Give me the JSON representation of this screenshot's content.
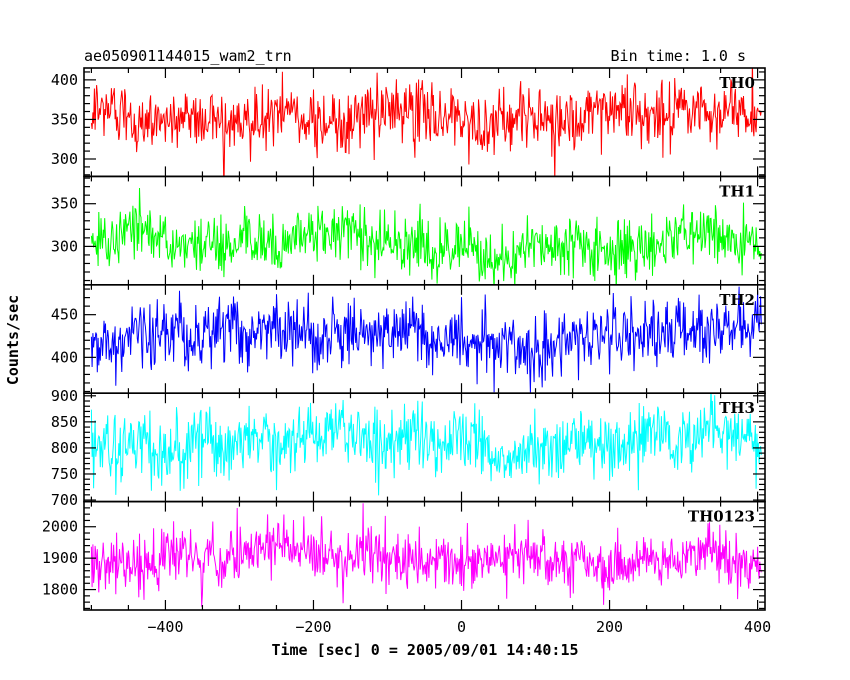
{
  "chart_data": {
    "type": "line",
    "title": "ae050901144015_wam2_trn",
    "bin_time_label": "Bin time: 1.0 s",
    "xlabel": "Time [sec] 0 = 2005/09/01 14:40:15",
    "ylabel": "Counts/sec",
    "xlim": [
      -510,
      410
    ],
    "data_x_range": [
      -500,
      405
    ],
    "bin_seconds": 1.0,
    "x_ticks": [
      -400,
      -200,
      0,
      200,
      400
    ],
    "x_tick_labels": [
      "−400",
      "−200",
      "0",
      "200",
      "400"
    ],
    "grid": false,
    "series": [
      {
        "name": "TH0",
        "color": "#ff0000",
        "mean": 355,
        "noise_sd": 20,
        "ylim": [
          278,
          415
        ],
        "yticks": [
          300,
          350,
          400
        ],
        "ytick_labels": [
          "300",
          "350",
          "400"
        ]
      },
      {
        "name": "TH1",
        "color": "#00ff00",
        "mean": 312,
        "noise_sd": 17,
        "ylim": [
          255,
          382
        ],
        "yticks": [
          300,
          350
        ],
        "ytick_labels": [
          "300",
          "350"
        ]
      },
      {
        "name": "TH2",
        "color": "#0000ff",
        "mean": 422,
        "noise_sd": 20,
        "ylim": [
          358,
          485
        ],
        "yticks": [
          400,
          450
        ],
        "ytick_labels": [
          "400",
          "450"
        ]
      },
      {
        "name": "TH3",
        "color": "#00ffff",
        "mean": 810,
        "noise_sd": 32,
        "ylim": [
          697,
          905
        ],
        "yticks": [
          700,
          750,
          800,
          850,
          900
        ],
        "ytick_labels": [
          "700",
          "750",
          "800",
          "850",
          "900"
        ]
      },
      {
        "name": "TH0123",
        "color": "#ff00ff",
        "mean": 1900,
        "noise_sd": 45,
        "ylim": [
          1735,
          2080
        ],
        "yticks": [
          1800,
          1900,
          2000
        ],
        "ytick_labels": [
          "1800",
          "1900",
          "2000"
        ]
      }
    ]
  }
}
